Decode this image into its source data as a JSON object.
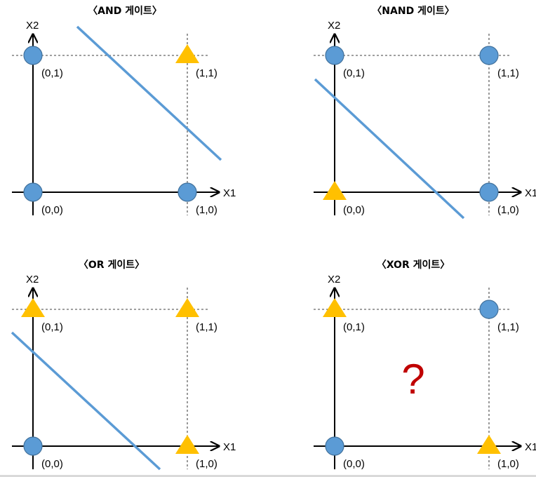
{
  "colors": {
    "circle_fill": "#5b9bd5",
    "circle_stroke": "#41719c",
    "triangle_fill": "#ffc000",
    "line": "#5b9bd5",
    "question": "#c00000"
  },
  "axis_labels": {
    "x": "X1",
    "y": "X2"
  },
  "point_labels": {
    "p00": "(0,0)",
    "p10": "(1,0)",
    "p01": "(0,1)",
    "p11": "(1,1)"
  },
  "panels": [
    {
      "id": "and",
      "title": "〈AND 게이트〉",
      "markers": {
        "p00": "circle",
        "p10": "circle",
        "p01": "circle",
        "p11": "triangle"
      },
      "separator": true,
      "question": ""
    },
    {
      "id": "nand",
      "title": "〈NAND 게이트〉",
      "markers": {
        "p00": "triangle",
        "p10": "circle",
        "p01": "circle",
        "p11": "circle"
      },
      "separator": true,
      "question": ""
    },
    {
      "id": "or",
      "title": "〈OR 게이트〉",
      "markers": {
        "p00": "circle",
        "p10": "triangle",
        "p01": "triangle",
        "p11": "triangle"
      },
      "separator": true,
      "question": ""
    },
    {
      "id": "xor",
      "title": "〈XOR 게이트〉",
      "markers": {
        "p00": "circle",
        "p10": "triangle",
        "p01": "triangle",
        "p11": "circle"
      },
      "separator": false,
      "question": "?"
    }
  ]
}
